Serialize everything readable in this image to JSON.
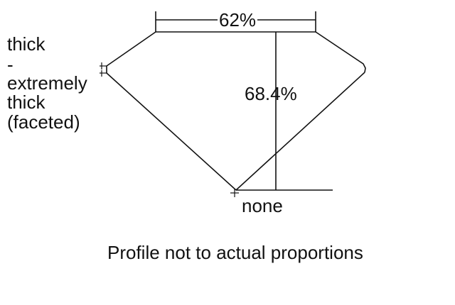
{
  "diagram": {
    "table_percent": "62%",
    "depth_percent": "68.4%",
    "girdle_lines": [
      "thick",
      "-",
      "extremely",
      "thick",
      "(faceted)"
    ],
    "culet": "none",
    "note": "Profile not to actual proportions",
    "line_color": "#111111"
  }
}
